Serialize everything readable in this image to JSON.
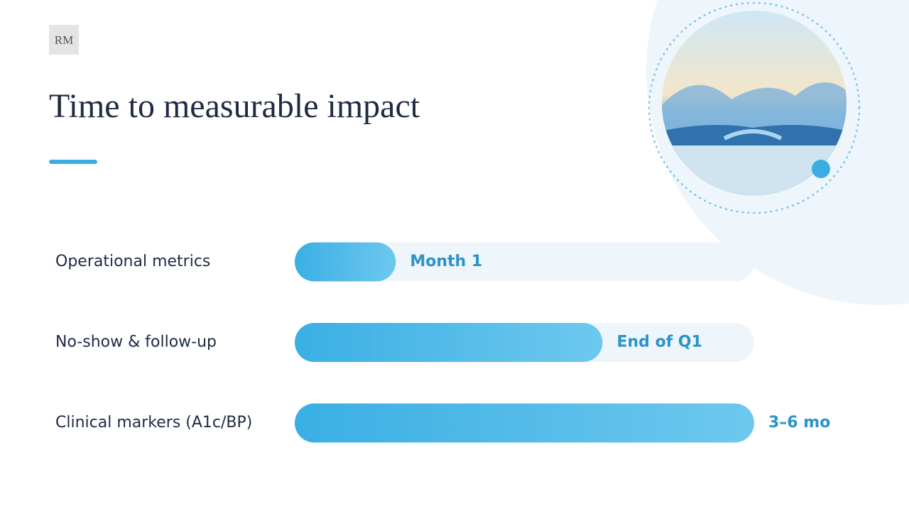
{
  "logo": "RM",
  "title": "Time to measurable impact",
  "rows": [
    {
      "label": "Operational metrics",
      "milestone": "Month 1",
      "progress": 22
    },
    {
      "label": "No-show & follow-up",
      "milestone": "End of Q1",
      "progress": 67
    },
    {
      "label": "Clinical markers (A1c/BP)",
      "milestone": "3–6 mo",
      "progress": 100
    }
  ]
}
